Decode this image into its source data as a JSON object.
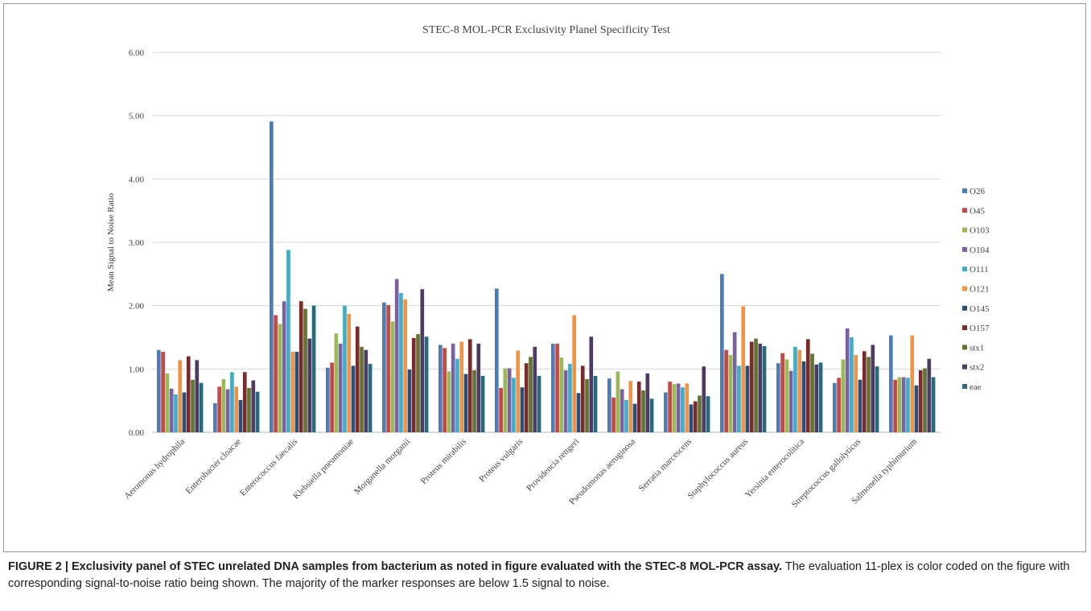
{
  "chart_data": {
    "type": "bar",
    "title": "STEC-8 MOL-PCR Exclusivity Planel Specificity Test",
    "xlabel": "",
    "ylabel": "Mean Signal to Noise Ratio",
    "ylim": [
      0,
      6
    ],
    "yticks": [
      "0.00",
      "1.00",
      "2.00",
      "3.00",
      "4.00",
      "5.00",
      "6.00"
    ],
    "grid": true,
    "legend_position": "right",
    "categories": [
      "Aeromonas hydrophila",
      "Enterobacter cloacae",
      "Enterococcus  faecalis",
      "Klebsiella pneumoniae",
      "Morganella morganii",
      "Proteus mirabilis",
      "Proteus vulgaris",
      "Providencia rettgeri",
      "Pseudomonas aeruginosa",
      "Serratia marcescens",
      "Staphylococcus aureus",
      "Yersinia enterocolitica",
      "Streptococcus gallolyticus",
      "Salmonella typhimurium"
    ],
    "series": [
      {
        "name": "O26",
        "color": "#4a7ebb",
        "values": [
          1.3,
          0.46,
          4.91,
          1.02,
          2.05,
          1.38,
          2.27,
          1.4,
          0.85,
          0.63,
          2.5,
          1.09,
          0.78,
          1.53
        ]
      },
      {
        "name": "O45",
        "color": "#be4b48",
        "values": [
          1.27,
          0.72,
          1.85,
          1.1,
          2.01,
          1.33,
          0.7,
          1.4,
          0.55,
          0.8,
          1.3,
          1.25,
          0.86,
          0.83
        ]
      },
      {
        "name": "O103",
        "color": "#98b954",
        "values": [
          0.93,
          0.84,
          1.71,
          1.56,
          1.75,
          0.96,
          1.01,
          1.18,
          0.96,
          0.76,
          1.22,
          1.15,
          1.15,
          0.87
        ]
      },
      {
        "name": "O104",
        "color": "#7d60a0",
        "values": [
          0.69,
          0.68,
          2.07,
          1.4,
          2.42,
          1.4,
          1.01,
          0.98,
          0.68,
          0.77,
          1.58,
          0.97,
          1.64,
          0.87
        ]
      },
      {
        "name": "O111",
        "color": "#46aac5",
        "values": [
          0.6,
          0.95,
          2.88,
          2.0,
          2.2,
          1.16,
          0.86,
          1.08,
          0.51,
          0.71,
          1.05,
          1.35,
          1.5,
          0.86
        ]
      },
      {
        "name": "O121",
        "color": "#f69240",
        "values": [
          1.14,
          0.72,
          1.27,
          1.87,
          2.1,
          1.43,
          1.29,
          1.85,
          0.81,
          0.77,
          1.99,
          1.3,
          1.22,
          1.53
        ]
      },
      {
        "name": "O145",
        "color": "#2c4d75",
        "values": [
          0.63,
          0.51,
          1.27,
          1.05,
          0.99,
          0.92,
          0.71,
          0.62,
          0.45,
          0.44,
          1.05,
          1.12,
          0.83,
          0.74
        ]
      },
      {
        "name": "O157",
        "color": "#772c2a",
        "values": [
          1.2,
          0.95,
          2.07,
          1.67,
          1.49,
          1.47,
          1.09,
          1.05,
          0.8,
          0.49,
          1.43,
          1.47,
          1.28,
          0.98
        ]
      },
      {
        "name": "stx1",
        "color": "#5f7530",
        "values": [
          0.83,
          0.7,
          1.95,
          1.35,
          1.55,
          0.98,
          1.19,
          0.84,
          0.66,
          0.58,
          1.48,
          1.24,
          1.19,
          1.01
        ]
      },
      {
        "name": "stx2",
        "color": "#4d3b62",
        "values": [
          1.14,
          0.82,
          1.48,
          1.3,
          2.26,
          1.4,
          1.35,
          1.51,
          0.93,
          1.04,
          1.4,
          1.07,
          1.38,
          1.16
        ]
      },
      {
        "name": "eae",
        "color": "#276a7c",
        "values": [
          0.78,
          0.64,
          2.0,
          1.08,
          1.51,
          0.89,
          0.89,
          0.89,
          0.53,
          0.57,
          1.36,
          1.1,
          1.04,
          0.87
        ]
      }
    ]
  },
  "caption": {
    "title": "FIGURE 2 | Exclusivity panel of STEC unrelated DNA samples from bacterium as noted in figure evaluated with the STEC-8 MOL-PCR assay.",
    "body": " The evaluation 11-plex is color coded on the figure with corresponding signal-to-noise ratio being shown. The majority of the marker responses are below 1.5 signal to noise."
  }
}
